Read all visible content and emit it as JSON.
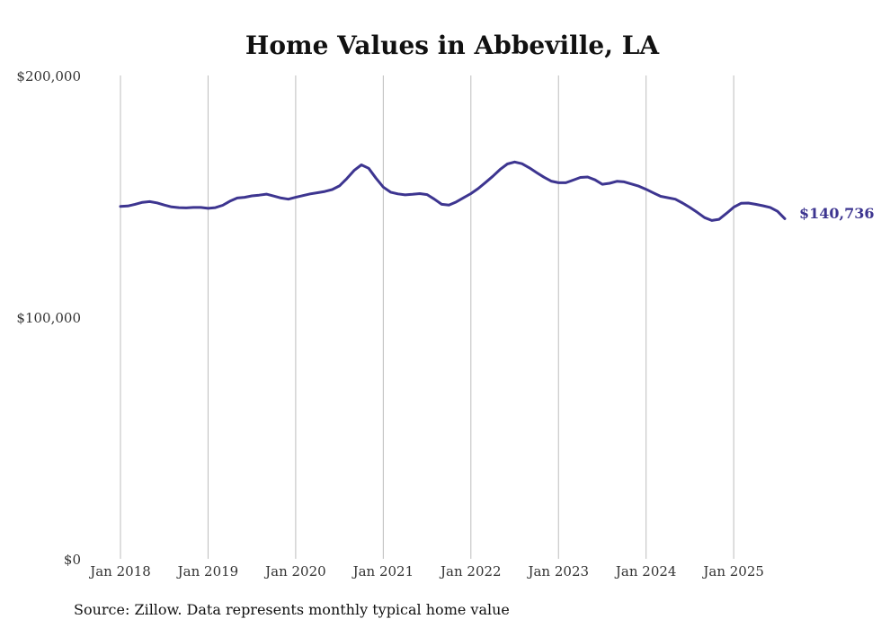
{
  "chart_data": {
    "type": "line",
    "title": "Home Values in Abbeville, LA",
    "xlabel": "",
    "ylabel": "",
    "ylim": [
      0,
      200000
    ],
    "yticks": [
      {
        "value": 0,
        "label": "$0"
      },
      {
        "value": 100000,
        "label": "$100,000"
      },
      {
        "value": 200000,
        "label": "$200,000"
      }
    ],
    "xlim": [
      "2018-01",
      "2025-08"
    ],
    "xticks": [
      {
        "date": "2018-01",
        "label": "Jan 2018"
      },
      {
        "date": "2019-01",
        "label": "Jan 2019"
      },
      {
        "date": "2020-01",
        "label": "Jan 2020"
      },
      {
        "date": "2021-01",
        "label": "Jan 2021"
      },
      {
        "date": "2022-01",
        "label": "Jan 2022"
      },
      {
        "date": "2023-01",
        "label": "Jan 2023"
      },
      {
        "date": "2024-01",
        "label": "Jan 2024"
      },
      {
        "date": "2025-01",
        "label": "Jan 2025"
      }
    ],
    "grid": "vertical",
    "line_color": "#3d3590",
    "end_label": "$140,736",
    "series": [
      {
        "x": [
          "2018-01",
          "2018-02",
          "2018-03",
          "2018-04",
          "2018-05",
          "2018-06",
          "2018-07",
          "2018-08",
          "2018-09",
          "2018-10",
          "2018-11",
          "2018-12",
          "2019-01",
          "2019-02",
          "2019-03",
          "2019-04",
          "2019-05",
          "2019-06",
          "2019-07",
          "2019-08",
          "2019-09",
          "2019-10",
          "2019-11",
          "2019-12",
          "2020-01",
          "2020-02",
          "2020-03",
          "2020-04",
          "2020-05",
          "2020-06",
          "2020-07",
          "2020-08",
          "2020-09",
          "2020-10",
          "2020-11",
          "2020-12",
          "2021-01",
          "2021-02",
          "2021-03",
          "2021-04",
          "2021-05",
          "2021-06",
          "2021-07",
          "2021-08",
          "2021-09",
          "2021-10",
          "2021-11",
          "2021-12",
          "2022-01",
          "2022-02",
          "2022-03",
          "2022-04",
          "2022-05",
          "2022-06",
          "2022-07",
          "2022-08",
          "2022-09",
          "2022-10",
          "2022-11",
          "2022-12",
          "2023-01",
          "2023-02",
          "2023-03",
          "2023-04",
          "2023-05",
          "2023-06",
          "2023-07",
          "2023-08",
          "2023-09",
          "2023-10",
          "2023-11",
          "2023-12",
          "2024-01",
          "2024-02",
          "2024-03",
          "2024-04",
          "2024-05",
          "2024-06",
          "2024-07",
          "2024-08",
          "2024-09",
          "2024-10",
          "2024-11",
          "2024-12",
          "2025-01",
          "2025-02",
          "2025-03",
          "2025-04",
          "2025-05",
          "2025-06",
          "2025-07",
          "2025-08"
        ],
        "values": [
          145800,
          146000,
          146700,
          147500,
          147800,
          147300,
          146400,
          145600,
          145300,
          145200,
          145400,
          145400,
          145000,
          145300,
          146300,
          148000,
          149300,
          149600,
          150200,
          150500,
          150900,
          150100,
          149300,
          148800,
          149600,
          150300,
          151000,
          151500,
          152000,
          152800,
          154300,
          157300,
          160700,
          163000,
          161600,
          157500,
          153800,
          151700,
          151000,
          150600,
          150800,
          151100,
          150700,
          148800,
          146700,
          146400,
          147700,
          149400,
          151100,
          153200,
          155700,
          158300,
          161100,
          163400,
          164200,
          163500,
          161800,
          159800,
          157900,
          156300,
          155600,
          155600,
          156700,
          157800,
          158000,
          156800,
          155000,
          155400,
          156200,
          156000,
          155100,
          154200,
          152900,
          151400,
          150000,
          149400,
          148800,
          147200,
          145400,
          143400,
          141200,
          140000,
          140500,
          142900,
          145500,
          147100,
          147200,
          146700,
          146100,
          145400,
          143800,
          140736
        ]
      }
    ]
  },
  "source": "Source: Zillow. Data represents monthly typical home value"
}
